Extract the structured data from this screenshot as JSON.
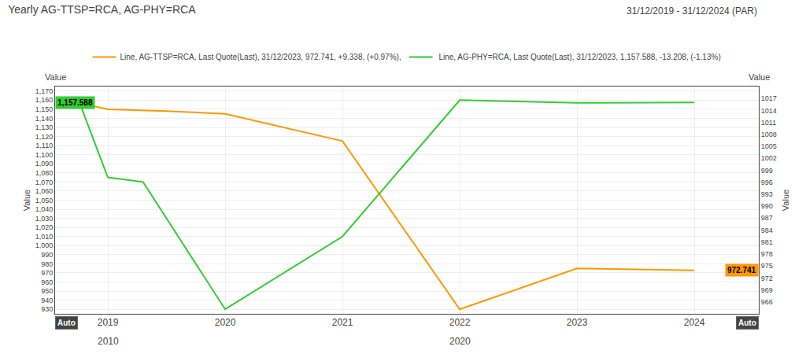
{
  "chart_data": {
    "type": "line",
    "title": "Yearly AG-TTSP=RCA, AG-PHY=RCA",
    "subtitle": "31/12/2019 - 31/12/2024 (PAR)",
    "ylabel": "Value",
    "y2label": "Value",
    "series": [
      {
        "name": "Line, AG-TTSP=RCA, Last Quote(Last), 31/12/2023, 972.741, +9.338, (+0.97%),",
        "color": "#ff9900",
        "x": [
          2018.75,
          2019.0,
          2019.5,
          2020.0,
          2021.0,
          2022.0,
          2023.0,
          2024.0
        ],
        "values": [
          1157,
          1150,
          1148,
          1145,
          1115,
          930,
          975,
          972.741
        ]
      },
      {
        "name": " Line, AG-PHY=RCA, Last Quote(Last), 31/12/2023, 1,157.588, -13.208, (-1.13%)",
        "color": "#33cc33",
        "x": [
          2018.75,
          2019.0,
          2019.3,
          2020.0,
          2021.0,
          2022.0,
          2023.0,
          2024.0
        ],
        "values": [
          1160,
          1075,
          1070,
          930,
          1010,
          1160,
          1157,
          1157.588
        ]
      }
    ],
    "xlim": [
      2018.55,
      2024.55
    ],
    "xticks": [
      2019.0,
      2020.0,
      2021.0,
      2022.0,
      2023.0,
      2024.0
    ],
    "ylim": [
      925,
      1175
    ],
    "yticks": [
      930,
      940,
      950,
      960,
      970,
      980,
      990,
      {
        "value": 1000,
        "label": "1,000"
      },
      {
        "value": 1010,
        "label": "1,010"
      },
      {
        "value": 1020,
        "label": "1,020"
      },
      {
        "value": 1030,
        "label": "1,030"
      },
      {
        "value": 1040,
        "label": "1,040"
      },
      {
        "value": 1050,
        "label": "1,050"
      },
      {
        "value": 1060,
        "label": "1,060"
      },
      {
        "value": 1070,
        "label": "1,070"
      },
      {
        "value": 1080,
        "label": "1,080"
      },
      {
        "value": 1090,
        "label": "1,090"
      },
      {
        "value": 1100,
        "label": "1,100"
      },
      {
        "value": 1110,
        "label": "1,110"
      },
      {
        "value": 1120,
        "label": "1,120"
      },
      {
        "value": 1130,
        "label": "1,130"
      },
      {
        "value": 1140,
        "label": "1,140"
      },
      {
        "value": 1150,
        "label": "1,150"
      },
      {
        "value": 1160,
        "label": "1,160"
      },
      {
        "value": 1170,
        "label": "1,170"
      }
    ],
    "y2lim": [
      963,
      1020
    ],
    "y2ticks": [
      966,
      969,
      972,
      975,
      978,
      981,
      984,
      987,
      990,
      993,
      996,
      999,
      1002,
      1005,
      1008,
      1011,
      1014,
      1017
    ],
    "grid": true,
    "legend": "top",
    "annotations": [
      {
        "text": "Value",
        "side": "left"
      },
      {
        "text": "Value",
        "side": "right"
      },
      {
        "text": "1,157.588",
        "x": 2018.55,
        "y": 1157.588,
        "color": "#33cc33"
      },
      {
        "text": "972.741",
        "x": 2024.55,
        "y": 972.741,
        "color": "#ff9900"
      },
      {
        "text": "Auto",
        "x": 2018.55
      },
      {
        "text": "Auto",
        "x": 2024.55
      },
      {
        "text": "2010",
        "x": 2019.0
      },
      {
        "text": "2020",
        "x": 2022.0
      }
    ]
  }
}
